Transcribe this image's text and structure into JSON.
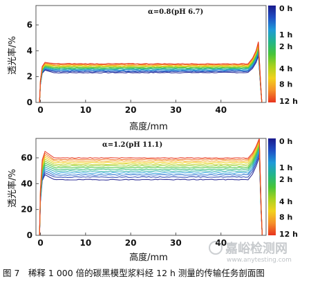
{
  "caption": "图 7　稀释 1 000 倍的碳黑模型浆料经 12 h 测量的传输任务剖面图",
  "watermark": {
    "text": "嘉峪检测网",
    "url": "www.anytesting.com"
  },
  "colorbar": {
    "colors": [
      "#1a1a8c",
      "#1f4fc4",
      "#1f9ad8",
      "#22b58a",
      "#46c43a",
      "#a8d21f",
      "#f2d21c",
      "#f5902a",
      "#e8331e"
    ],
    "labels": [
      {
        "text": "0 h",
        "t": 0.0
      },
      {
        "text": "1 h",
        "t": 0.3
      },
      {
        "text": "2 h",
        "t": 0.42
      },
      {
        "text": "4 h",
        "t": 0.65
      },
      {
        "text": "8 h",
        "t": 0.81
      },
      {
        "text": "12 h",
        "t": 1.0
      }
    ]
  },
  "chart_data": [
    {
      "type": "line",
      "annotation": "α=0.8(pH 6.7)",
      "xlabel": "高度/mm",
      "ylabel": "透光率/%",
      "xlim": [
        -1,
        50
      ],
      "ylim": [
        0,
        7.5
      ],
      "xticks": [
        0,
        10,
        20,
        30,
        40
      ],
      "yticks": [
        0,
        2,
        4,
        6
      ],
      "grid": false,
      "n_curves": 13,
      "series_note": "one curve per measurement time from 0 h to 12 h",
      "plateau_start": 2.3,
      "plateau_end": 3.0,
      "onset_peak_start": 2.5,
      "onset_peak_end": 3.1,
      "right_spike_x": 48.3,
      "right_spike_y": 4.7,
      "drop_x": 48.8
    },
    {
      "type": "line",
      "annotation": "α=1.2(pH 11.1)",
      "xlabel": "高度/mm",
      "ylabel": "透光率/%",
      "xlim": [
        -1,
        50
      ],
      "ylim": [
        0,
        75
      ],
      "xticks": [
        0,
        10,
        20,
        30,
        40
      ],
      "yticks": [
        0,
        20,
        40,
        60
      ],
      "grid": false,
      "n_curves": 13,
      "series_note": "one curve per measurement time from 0 h to 12 h",
      "plateau_start": 43,
      "plateau_end": 60,
      "onset_peak_start": 47,
      "onset_peak_end": 65,
      "right_spike_x": 48.5,
      "right_spike_y": 75,
      "drop_x": 48.9
    }
  ]
}
